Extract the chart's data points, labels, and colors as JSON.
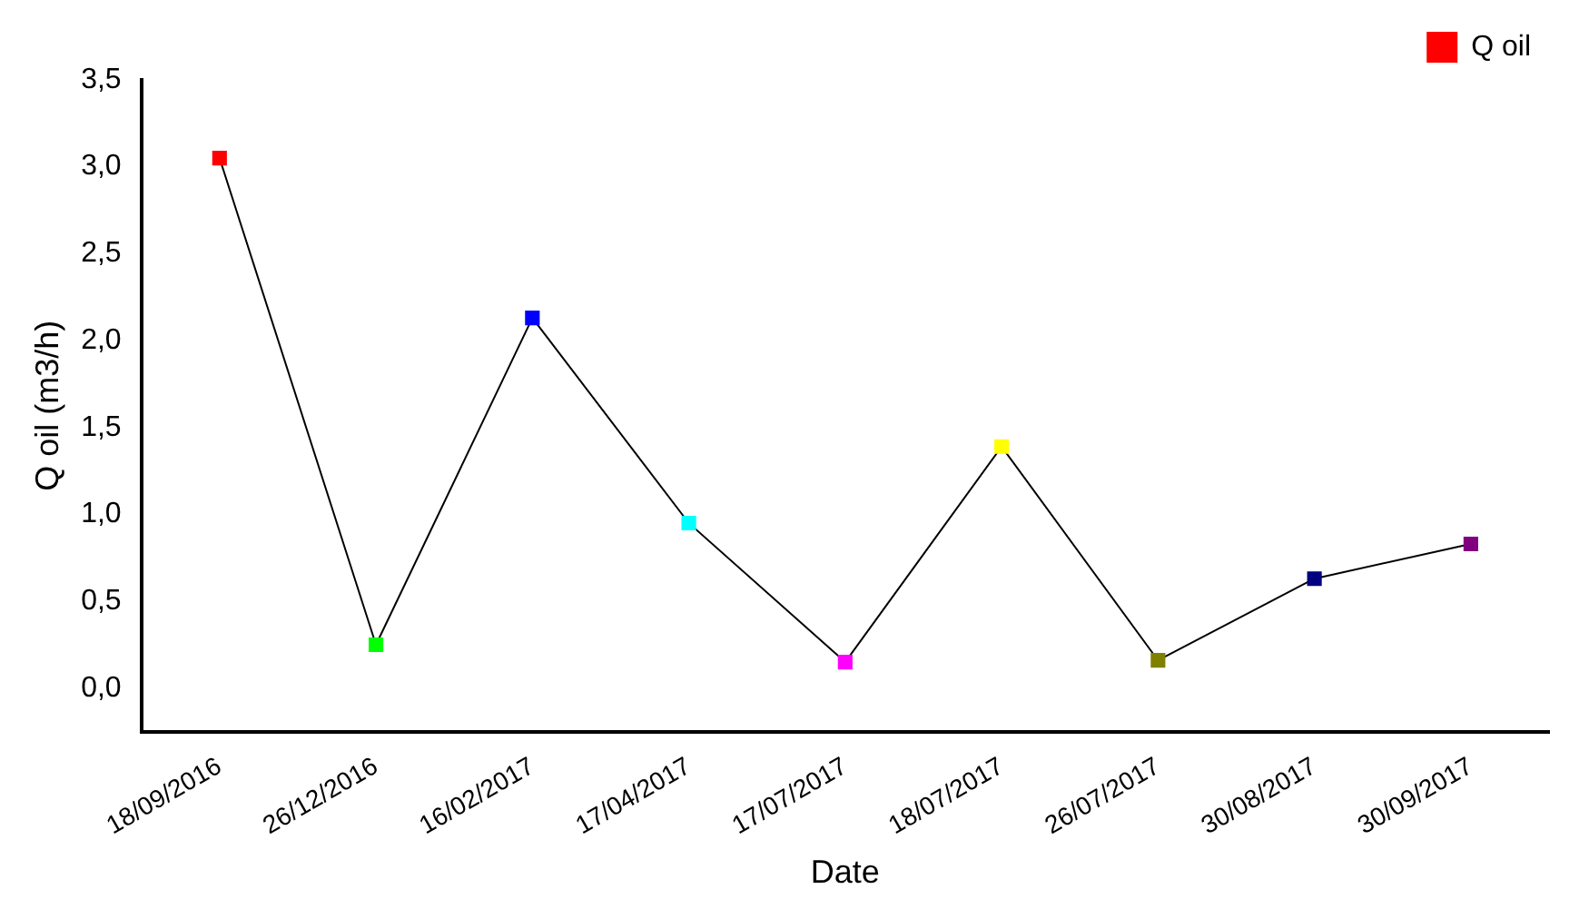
{
  "chart_data": {
    "type": "line",
    "xlabel": "Date",
    "ylabel": "Q oil (m3/h)",
    "categories": [
      "18/09/2016",
      "26/12/2016",
      "16/02/2017",
      "17/04/2017",
      "17/07/2017",
      "18/07/2017",
      "26/07/2017",
      "30/08/2017",
      "30/09/2017"
    ],
    "series": [
      {
        "name": "Q oil",
        "color": "#000000",
        "colors": [
          "#ff0000",
          "#00ff00",
          "#0000ff",
          "#00ffff",
          "#ff00ff",
          "#ffff00",
          "#808000",
          "#000080",
          "#800080"
        ],
        "values": [
          3.05,
          0.25,
          2.13,
          0.95,
          0.15,
          1.39,
          0.16,
          0.63,
          0.83
        ]
      }
    ],
    "ylim": [
      -0.25,
      3.5
    ],
    "yticks": [
      {
        "value": 0,
        "label": "0,0"
      },
      {
        "value": 0.5,
        "label": "0,5"
      },
      {
        "value": 1,
        "label": "1,0"
      },
      {
        "value": 1.5,
        "label": "1,5"
      },
      {
        "value": 2,
        "label": "2,0"
      },
      {
        "value": 2.5,
        "label": "2,5"
      },
      {
        "value": 3,
        "label": "3,0"
      },
      {
        "value": 3.5,
        "label": "3,5"
      }
    ],
    "grid": false,
    "legend": "top right",
    "marker": "square",
    "line_style": "solid"
  }
}
